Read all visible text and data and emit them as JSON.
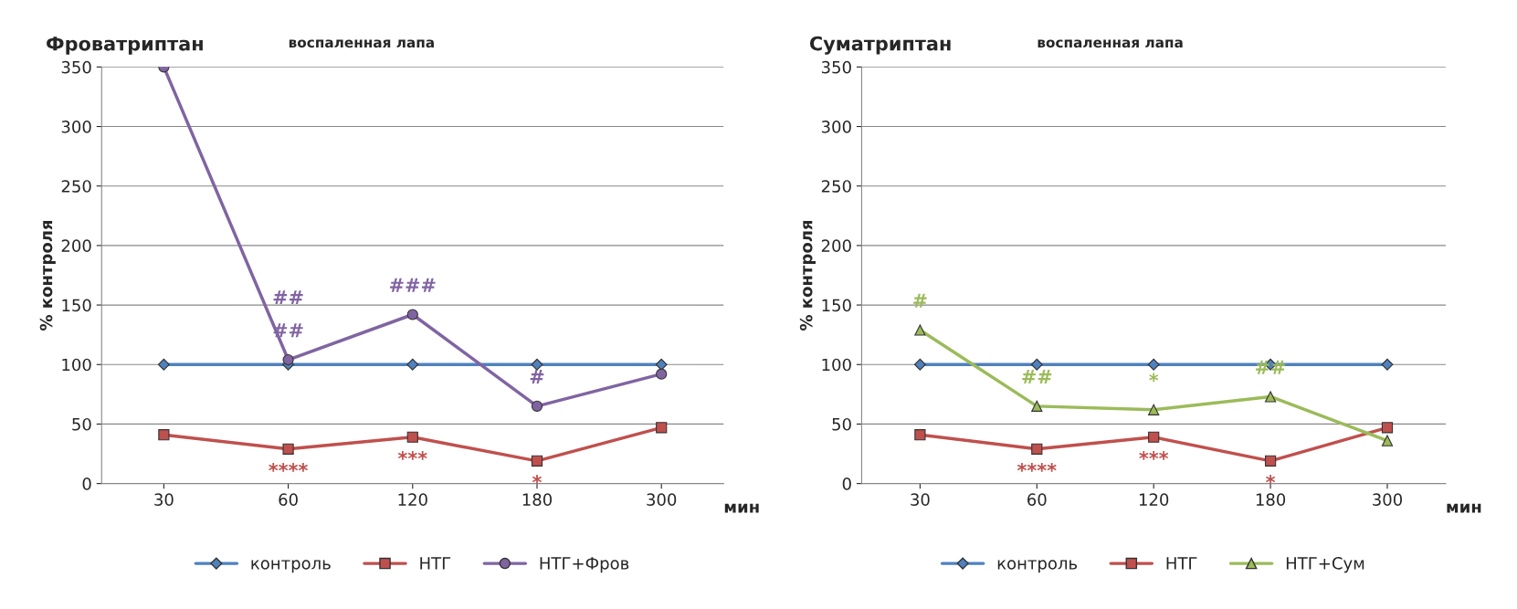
{
  "chart_data": [
    {
      "type": "line",
      "title": "Фроватриптан",
      "subtitle": "воспаленная лапа",
      "ylabel": "% контроля",
      "xlabel": "мин",
      "categories": [
        "30",
        "60",
        "120",
        "180",
        "300"
      ],
      "ylim": [
        0,
        350
      ],
      "yticks": [
        0,
        50,
        100,
        150,
        200,
        250,
        300,
        350
      ],
      "grid": "y",
      "legend": "bottom",
      "series": [
        {
          "name": "контроль",
          "color": "#4f81bd",
          "marker": "diamond",
          "values": [
            100,
            100,
            100,
            100,
            100
          ]
        },
        {
          "name": "НТГ",
          "color": "#c0504d",
          "marker": "square",
          "values": [
            41,
            29,
            39,
            19,
            47
          ]
        },
        {
          "name": "НТГ+Фров",
          "color": "#8064a2",
          "marker": "circle",
          "values": [
            350,
            104,
            142,
            65,
            92
          ]
        }
      ],
      "annotations": [
        {
          "text": "##",
          "x": "60",
          "y": 104
        },
        {
          "text": "##",
          "x": "60",
          "y": 104
        },
        {
          "text": "###",
          "x": "120",
          "y": 142
        },
        {
          "text": "#",
          "x": "180",
          "y": 65
        },
        {
          "text": "****",
          "x": "60",
          "y": 29
        },
        {
          "text": "***",
          "x": "120",
          "y": 39
        },
        {
          "text": "*",
          "x": "180",
          "y": 19
        }
      ]
    },
    {
      "type": "line",
      "title": "Суматриптан",
      "subtitle": "воспаленная лапа",
      "ylabel": "% контроля",
      "xlabel": "мин",
      "categories": [
        "30",
        "60",
        "120",
        "180",
        "300"
      ],
      "ylim": [
        0,
        350
      ],
      "yticks": [
        0,
        50,
        100,
        150,
        200,
        250,
        300,
        350
      ],
      "grid": "y",
      "legend": "bottom",
      "series": [
        {
          "name": "контроль",
          "color": "#4f81bd",
          "marker": "diamond",
          "values": [
            100,
            100,
            100,
            100,
            100
          ]
        },
        {
          "name": "НТГ",
          "color": "#c0504d",
          "marker": "square",
          "values": [
            41,
            29,
            39,
            19,
            47
          ]
        },
        {
          "name": "НТГ+Сум",
          "color": "#9bbb59",
          "marker": "triangle",
          "values": [
            129,
            65,
            62,
            73,
            36
          ]
        }
      ],
      "annotations": [
        {
          "text": "#",
          "x": "30",
          "y": 129
        },
        {
          "text": "##",
          "x": "60",
          "y": 65
        },
        {
          "text": "*",
          "x": "120",
          "y": 62
        },
        {
          "text": "##",
          "x": "180",
          "y": 73
        },
        {
          "text": "****",
          "x": "60",
          "y": 29
        },
        {
          "text": "***",
          "x": "120",
          "y": 39
        },
        {
          "text": "*",
          "x": "180",
          "y": 19
        }
      ]
    }
  ]
}
